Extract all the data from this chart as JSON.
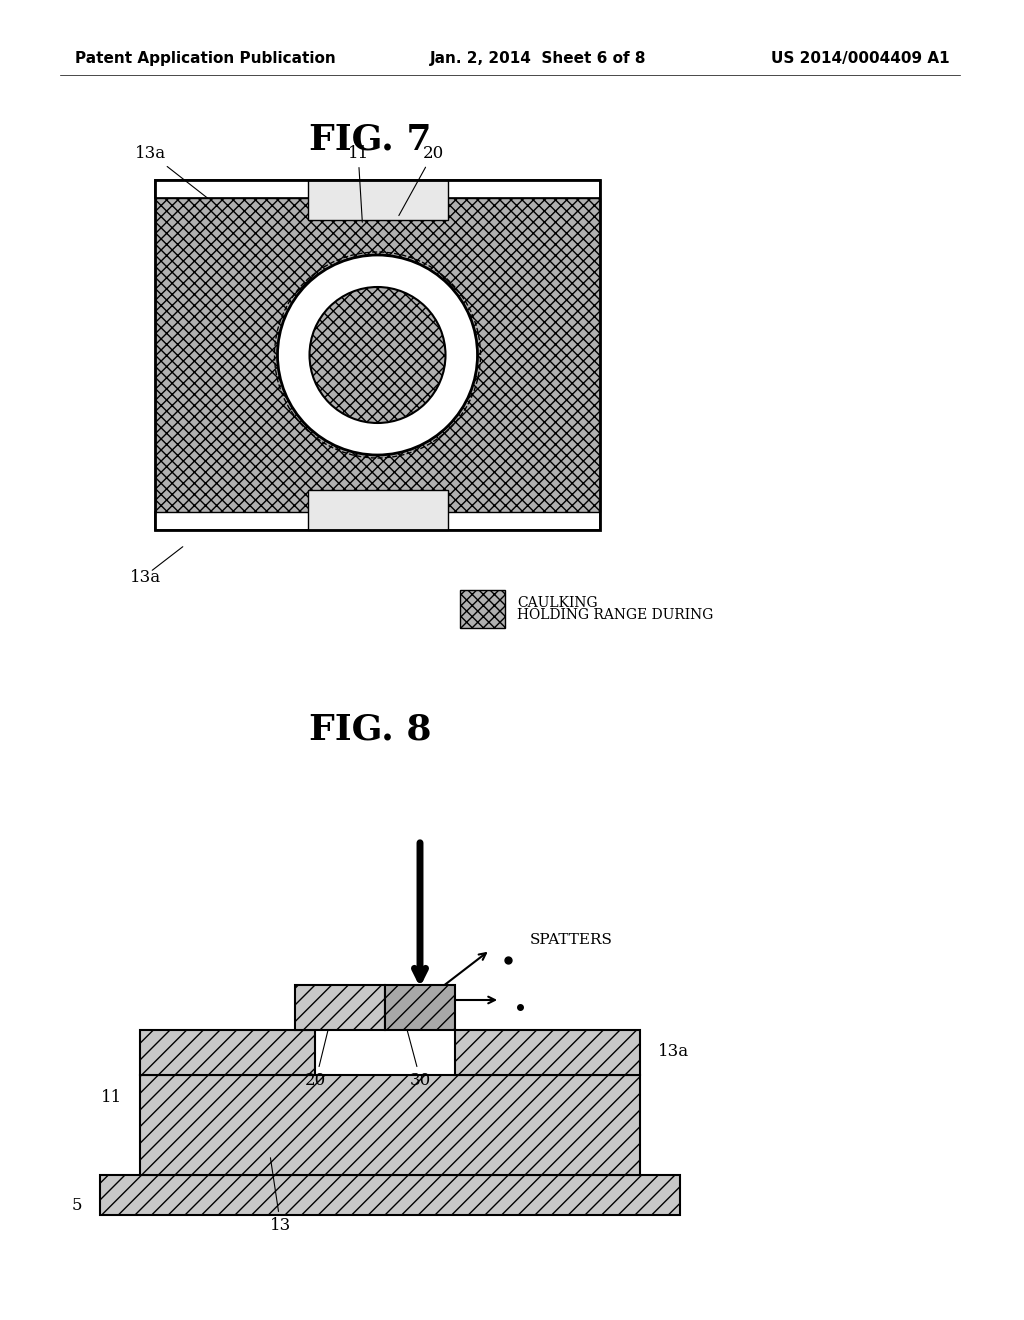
{
  "header_left": "Patent Application Publication",
  "header_mid": "Jan. 2, 2014  Sheet 6 of 8",
  "header_right": "US 2014/0004409 A1",
  "fig7_title": "FIG. 7",
  "fig8_title": "FIG. 8",
  "legend_text1": "HOLDING RANGE DURING",
  "legend_text2": "CAULKING",
  "bg_color": "#ffffff",
  "text_color": "#000000",
  "gray_light": "#c8c8c8",
  "gray_mid": "#a0a0a0",
  "gray_dark": "#808080",
  "figure_label_fontsize": 26,
  "header_fontsize": 11,
  "label_fontsize": 12
}
